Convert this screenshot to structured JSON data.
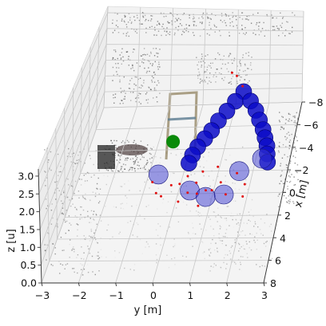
{
  "chart_data": {
    "type": "scatter",
    "projection": "3d",
    "xlabel": "x [m]",
    "ylabel": "y [m]",
    "zlabel": "z [u]",
    "x_ticks": [
      "−8",
      "−6",
      "−4",
      "−2",
      "0",
      "2",
      "4",
      "6",
      "8"
    ],
    "y_ticks": [
      "−3",
      "−2",
      "−1",
      "0",
      "1",
      "2",
      "3"
    ],
    "z_ticks": [
      "0.0",
      "0.5",
      "1.0",
      "1.5",
      "2.0",
      "2.5",
      "3.0"
    ],
    "xlim": [
      -8,
      8
    ],
    "ylim": [
      -3,
      3
    ],
    "zlim": [
      0,
      3.2
    ],
    "grid": true,
    "background": "point cloud of a room interior",
    "series": [
      {
        "marker": "large circle",
        "color": "#0a0ac8",
        "points": [
          {
            "x": -5.2,
            "y": 1.5,
            "z": 1.4
          },
          {
            "x": -4.6,
            "y": 1.3,
            "z": 1.3
          },
          {
            "x": -4.0,
            "y": 1.1,
            "z": 1.2
          },
          {
            "x": -3.4,
            "y": 0.9,
            "z": 1.1
          },
          {
            "x": -2.8,
            "y": 0.75,
            "z": 1.0
          },
          {
            "x": -2.2,
            "y": 0.6,
            "z": 0.95
          },
          {
            "x": -1.6,
            "y": 0.45,
            "z": 0.9
          },
          {
            "x": -1.0,
            "y": 0.35,
            "z": 0.85
          },
          {
            "x": -0.4,
            "y": 0.3,
            "z": 0.8
          },
          {
            "x": -4.6,
            "y": 1.75,
            "z": 1.3
          },
          {
            "x": -4.0,
            "y": 1.95,
            "z": 1.2
          },
          {
            "x": -3.4,
            "y": 2.1,
            "z": 1.1
          },
          {
            "x": -2.8,
            "y": 2.25,
            "z": 1.0
          },
          {
            "x": -2.2,
            "y": 2.35,
            "z": 0.95
          },
          {
            "x": -1.6,
            "y": 2.45,
            "z": 0.9
          },
          {
            "x": -1.0,
            "y": 2.5,
            "z": 0.85
          },
          {
            "x": -0.4,
            "y": 2.55,
            "z": 0.8
          }
        ]
      },
      {
        "marker": "translucent circle",
        "color": "#3a3ad0",
        "points": [
          {
            "x": -0.6,
            "y": -0.6,
            "z": 0.4
          },
          {
            "x": 0.6,
            "y": 0.4,
            "z": 0.3
          },
          {
            "x": 1.2,
            "y": 0.9,
            "z": 0.3
          },
          {
            "x": 1.0,
            "y": 1.4,
            "z": 0.3
          },
          {
            "x": -0.8,
            "y": 1.7,
            "z": 0.4
          },
          {
            "x": -1.6,
            "y": 2.3,
            "z": 0.5
          }
        ]
      },
      {
        "marker": "dot",
        "color": "#e01010",
        "points": [
          {
            "x": -1.0,
            "y": 0.2,
            "z": 0.2
          },
          {
            "x": -0.6,
            "y": 0.0,
            "z": 0.1
          },
          {
            "x": -0.2,
            "y": -0.2,
            "z": 0.2
          },
          {
            "x": 0.2,
            "y": 0.3,
            "z": 0.1
          },
          {
            "x": 0.6,
            "y": 0.6,
            "z": 0.2
          },
          {
            "x": 0.0,
            "y": 0.8,
            "z": 0.1
          },
          {
            "x": -0.4,
            "y": 1.2,
            "z": 0.2
          },
          {
            "x": 0.4,
            "y": 1.4,
            "z": 0.1
          },
          {
            "x": -1.2,
            "y": 1.6,
            "z": 0.2
          },
          {
            "x": -0.8,
            "y": -0.8,
            "z": 0.1
          },
          {
            "x": 0.8,
            "y": -0.4,
            "z": 0.2
          },
          {
            "x": 1.0,
            "y": 0.1,
            "z": 0.1
          },
          {
            "x": -1.4,
            "y": 0.6,
            "z": 0.2
          },
          {
            "x": 0.2,
            "y": -0.6,
            "z": 0.1
          },
          {
            "x": -0.2,
            "y": 1.9,
            "z": 0.2
          },
          {
            "x": 0.6,
            "y": 1.9,
            "z": 0.1
          },
          {
            "x": -1.8,
            "y": 1.0,
            "z": 0.2
          },
          {
            "x": 1.4,
            "y": 0.7,
            "z": 0.1
          },
          {
            "x": -0.4,
            "y": 0.5,
            "z": 0.2
          },
          {
            "x": 0.3,
            "y": 1.0,
            "z": 0.2
          },
          {
            "x": -6.0,
            "y": 1.4,
            "z": 1.3
          },
          {
            "x": -6.4,
            "y": 1.2,
            "z": 1.5
          },
          {
            "x": -7.0,
            "y": 1.0,
            "z": 1.4
          }
        ]
      },
      {
        "marker": "circle",
        "color": "#0a8a0a",
        "points": [
          {
            "x": -3.0,
            "y": -0.4,
            "z": 0.6
          }
        ]
      }
    ]
  }
}
